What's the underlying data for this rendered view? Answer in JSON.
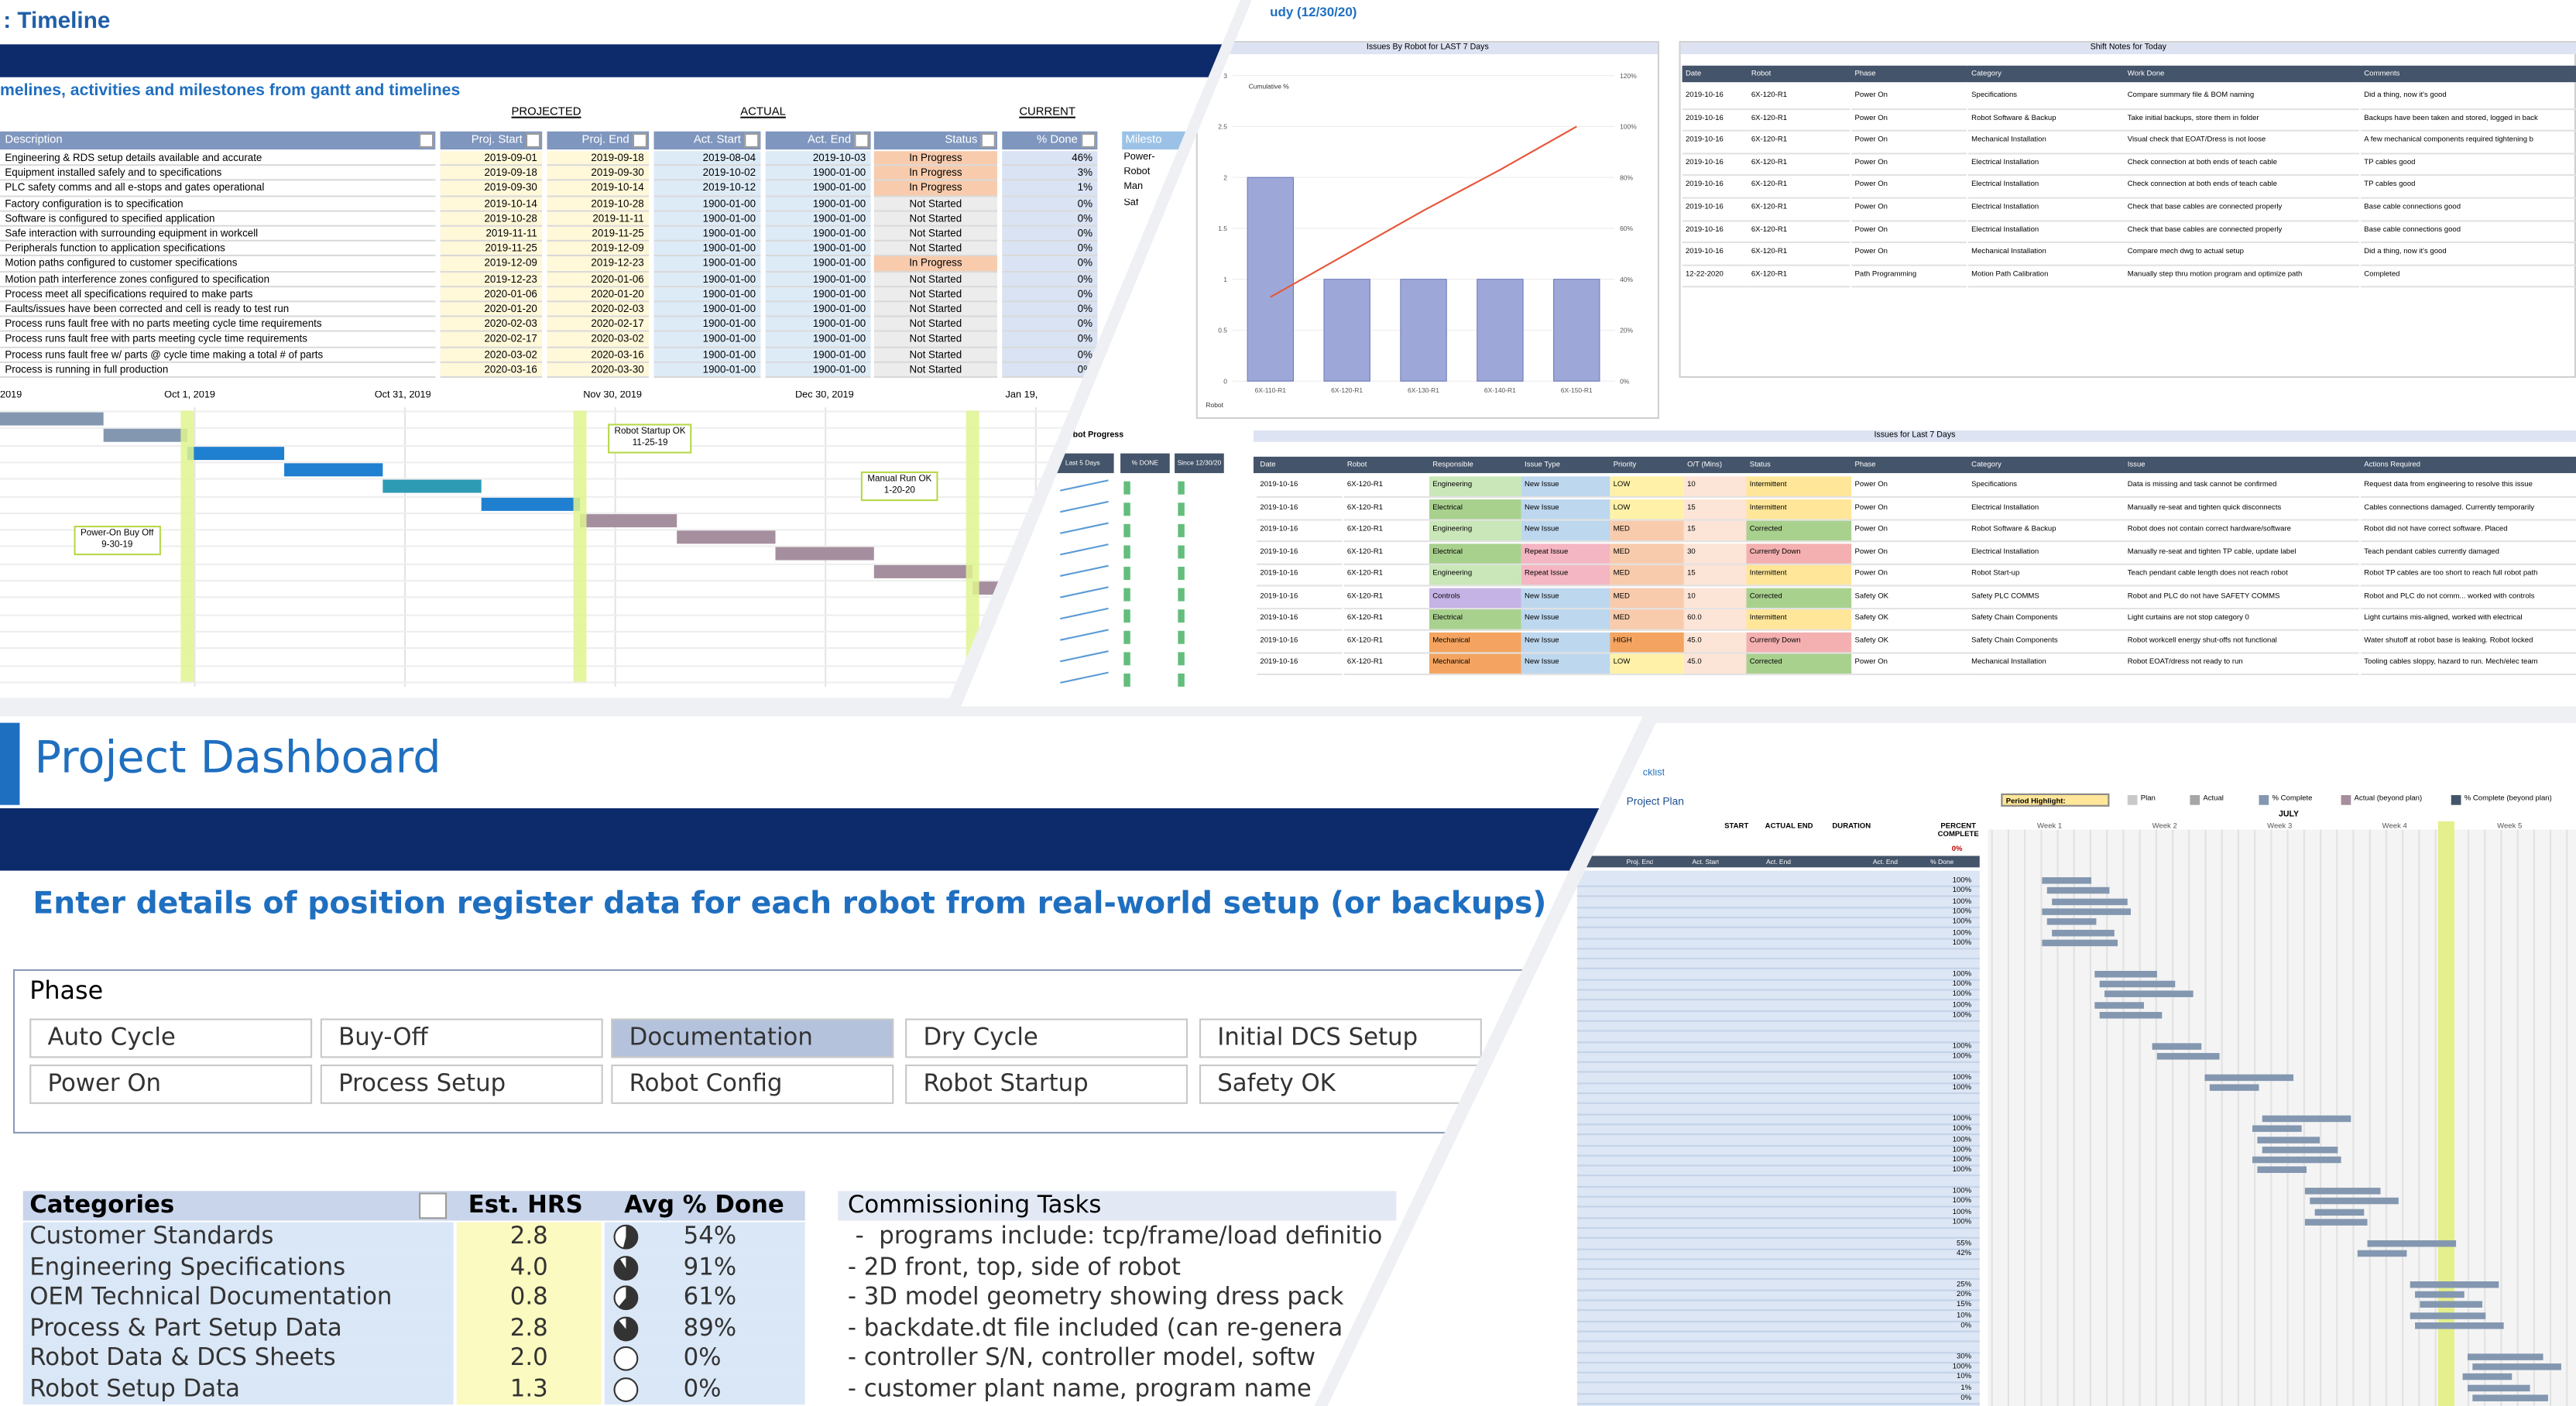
{
  "timeline": {
    "title": ": Timeline",
    "subtitle": "melines, activities and milestones from gantt and timelines",
    "groups": [
      "PROJECTED",
      "ACTUAL",
      "CURRENT"
    ],
    "columns": [
      "Description",
      "Proj. Start",
      "Proj. End",
      "Act. Start",
      "Act. End",
      "Status",
      "% Done"
    ],
    "rows": [
      [
        "Engineering & RDS setup details available and accurate",
        "2019-09-01",
        "2019-09-18",
        "2019-08-04",
        "2019-10-03",
        "In Progress",
        "46%"
      ],
      [
        "Equipment installed safely and to specifications",
        "2019-09-18",
        "2019-09-30",
        "2019-10-02",
        "1900-01-00",
        "In Progress",
        "3%"
      ],
      [
        "PLC safety comms and all e-stops and gates operational",
        "2019-09-30",
        "2019-10-14",
        "2019-10-12",
        "1900-01-00",
        "In Progress",
        "1%"
      ],
      [
        "Factory configuration is to specification",
        "2019-10-14",
        "2019-10-28",
        "1900-01-00",
        "1900-01-00",
        "Not Started",
        "0%"
      ],
      [
        "Software is configured to specified application",
        "2019-10-28",
        "2019-11-11",
        "1900-01-00",
        "1900-01-00",
        "Not Started",
        "0%"
      ],
      [
        "Safe interaction with surrounding equipment in workcell",
        "2019-11-11",
        "2019-11-25",
        "1900-01-00",
        "1900-01-00",
        "Not Started",
        "0%"
      ],
      [
        "Peripherals function to application specifications",
        "2019-11-25",
        "2019-12-09",
        "1900-01-00",
        "1900-01-00",
        "Not Started",
        "0%"
      ],
      [
        "Motion paths configured to customer specifications",
        "2019-12-09",
        "2019-12-23",
        "1900-01-00",
        "1900-01-00",
        "In Progress",
        "0%"
      ],
      [
        "Motion path interference zones configured to specification",
        "2019-12-23",
        "2020-01-06",
        "1900-01-00",
        "1900-01-00",
        "Not Started",
        "0%"
      ],
      [
        "Process meet all specifications required to make parts",
        "2020-01-06",
        "2020-01-20",
        "1900-01-00",
        "1900-01-00",
        "Not Started",
        "0%"
      ],
      [
        "Faults/issues have been corrected and cell is ready to test run",
        "2020-01-20",
        "2020-02-03",
        "1900-01-00",
        "1900-01-00",
        "Not Started",
        "0%"
      ],
      [
        "Process runs fault free with no parts meeting cycle time requirements",
        "2020-02-03",
        "2020-02-17",
        "1900-01-00",
        "1900-01-00",
        "Not Started",
        "0%"
      ],
      [
        "Process runs fault free with parts meeting cycle time requirements",
        "2020-02-17",
        "2020-03-02",
        "1900-01-00",
        "1900-01-00",
        "Not Started",
        "0%"
      ],
      [
        "Process runs fault free w/ parts @ cycle time making a total # of parts",
        "2020-03-02",
        "2020-03-16",
        "1900-01-00",
        "1900-01-00",
        "Not Started",
        "0%"
      ],
      [
        "Process is running in full production",
        "2020-03-16",
        "2020-03-30",
        "1900-01-00",
        "1900-01-00",
        "Not Started",
        "0%"
      ]
    ],
    "side_header": "Milesto",
    "side_labels": [
      "Power-",
      "Robot",
      "Man",
      "Saf"
    ],
    "gantt_dates": [
      "2019",
      "Oct 1, 2019",
      "Oct 31, 2019",
      "Nov 30, 2019",
      "Dec 30, 2019",
      "Jan 19,"
    ],
    "milestones": [
      {
        "label": "Power-On Buy Off",
        "date": "9-30-19"
      },
      {
        "label": "Robot Startup OK",
        "date": "11-25-19"
      },
      {
        "label": "Manual Run OK",
        "date": "1-20-20"
      }
    ]
  },
  "study": {
    "title": "udy (12/30/20)"
  },
  "issues_chart": {
    "type": "bar",
    "title": "Issues By Robot for LAST 7 Days",
    "legend": "Cumulative %",
    "categories": [
      "6X-110-R1",
      "6X-120-R1",
      "6X-130-R1",
      "6X-140-R1",
      "6X-150-R1"
    ],
    "values": [
      2,
      1,
      1,
      1,
      1
    ],
    "cumulative": [
      33,
      50,
      67,
      83,
      100
    ],
    "ylim": [
      0,
      3
    ],
    "yticks": [
      0,
      0.5,
      1,
      1.5,
      2,
      2.5,
      3
    ],
    "y2lim": [
      0,
      120
    ],
    "y2ticks": [
      {
        "value": 0,
        "label": "0%"
      },
      {
        "value": 20,
        "label": "20%"
      },
      {
        "value": 40,
        "label": "40%"
      },
      {
        "value": 60,
        "label": "60%"
      },
      {
        "value": 80,
        "label": "80%"
      },
      {
        "value": 100,
        "label": "100%"
      },
      {
        "value": 120,
        "label": "120%"
      }
    ],
    "footer": "Robot"
  },
  "shift_notes": {
    "title": "Shift Notes for Today",
    "columns": [
      "Date",
      "Robot",
      "Phase",
      "Category",
      "Work Done",
      "Comments"
    ],
    "rows": [
      [
        "2019-10-16",
        "6X-120-R1",
        "Power On",
        "Specifications",
        "Compare summary file & BOM naming",
        "Did a thing, now it's good"
      ],
      [
        "2019-10-16",
        "6X-120-R1",
        "Power On",
        "Robot Software & Backup",
        "Take initial backups, store them in folder",
        "Backups have been taken and stored, logged in back"
      ],
      [
        "2019-10-16",
        "6X-120-R1",
        "Power On",
        "Mechanical Installation",
        "Visual check that EOAT/Dress is not loose",
        "A few mechanical components required tightening b"
      ],
      [
        "2019-10-16",
        "6X-120-R1",
        "Power On",
        "Electrical Installation",
        "Check connection at both ends of teach cable",
        "TP cables good"
      ],
      [
        "2019-10-16",
        "6X-120-R1",
        "Power On",
        "Electrical Installation",
        "Check connection at both ends of teach cable",
        "TP cables good"
      ],
      [
        "2019-10-16",
        "6X-120-R1",
        "Power On",
        "Electrical Installation",
        "Check that base cables are connected properly",
        "Base cable connections good"
      ],
      [
        "2019-10-16",
        "6X-120-R1",
        "Power On",
        "Electrical Installation",
        "Check that base cables are connected properly",
        "Base cable connections good"
      ],
      [
        "2019-10-16",
        "6X-120-R1",
        "Power On",
        "Mechanical Installation",
        "Compare mech dwg to actual setup",
        "Did a thing, now it's good"
      ],
      [
        "12-22-2020",
        "6X-120-R1",
        "Path Programming",
        "Motion Path Calibration",
        "Manually step thru motion program and optimize path",
        "Completed"
      ]
    ]
  },
  "robot_progress": {
    "title": "obot Progress",
    "columns": [
      "Last 5 Days",
      "% DONE",
      "Since 12/30/20"
    ]
  },
  "issues": {
    "title": "Issues for Last 7 Days",
    "columns": [
      "Date",
      "Robot",
      "Responsible",
      "Issue Type",
      "Priority",
      "O/T (Mins)",
      "Status",
      "Phase",
      "Category",
      "Issue",
      "Actions Required"
    ],
    "rows": [
      [
        "2019-10-16",
        "6X-120-R1",
        "Engineering",
        "New Issue",
        "LOW",
        "10",
        "Intermittent",
        "Power On",
        "Specifications",
        "Data is missing and task cannot be confirmed",
        "Request data from engineering to resolve this issue"
      ],
      [
        "2019-10-16",
        "6X-120-R1",
        "Electrical",
        "New Issue",
        "LOW",
        "15",
        "Intermittent",
        "Power On",
        "Electrical Installation",
        "Manually re-seat and tighten quick disconnects",
        "Cables connections damaged. Currently temporarily"
      ],
      [
        "2019-10-16",
        "6X-120-R1",
        "Engineering",
        "New Issue",
        "MED",
        "15",
        "Corrected",
        "Power On",
        "Robot Software & Backup",
        "Robot does not contain correct hardware/software",
        "Robot did not have correct software. Placed"
      ],
      [
        "2019-10-16",
        "6X-120-R1",
        "Electrical",
        "Repeat Issue",
        "MED",
        "30",
        "Currently Down",
        "Power On",
        "Electrical Installation",
        "Manually re-seat and tighten TP cable, update label",
        "Teach pendant cables currently damaged"
      ],
      [
        "2019-10-16",
        "6X-120-R1",
        "Engineering",
        "Repeat Issue",
        "MED",
        "15",
        "Intermittent",
        "Power On",
        "Robot Start-up",
        "Teach pendant cable length does not reach robot",
        "Robot TP cables are too short to reach full robot path"
      ],
      [
        "2019-10-16",
        "6X-120-R1",
        "Controls",
        "New Issue",
        "MED",
        "10",
        "Corrected",
        "Safety OK",
        "Safety PLC COMMS",
        "Robot and PLC do not have SAFETY COMMS",
        "Robot and PLC do not comm... worked with controls"
      ],
      [
        "2019-10-16",
        "6X-120-R1",
        "Electrical",
        "New Issue",
        "MED",
        "60.0",
        "Intermittent",
        "Safety OK",
        "Safety Chain Components",
        "Light curtains are not stop category 0",
        "Light curtains mis-aligned, worked with electrical"
      ],
      [
        "2019-10-16",
        "6X-120-R1",
        "Mechanical",
        "New Issue",
        "HIGH",
        "45.0",
        "Currently Down",
        "Safety OK",
        "Safety Chain Components",
        "Robot workcell energy shut-offs not functional",
        "Water shutoff at robot base is leaking. Robot locked"
      ],
      [
        "2019-10-16",
        "6X-120-R1",
        "Mechanical",
        "New Issue",
        "LOW",
        "45.0",
        "Corrected",
        "Power On",
        "Mechanical Installation",
        "Robot EOAT/dress not ready to run",
        "Tooling cables sloppy, hazard to run. Mech/elec team"
      ]
    ]
  },
  "dashboard": {
    "title": "Project Dashboard",
    "subtitle": "Enter details of position register data for each robot from real-world setup (or backups)",
    "phase_label": "Phase",
    "phases": [
      "Auto Cycle",
      "Buy-Off",
      "Documentation",
      "Dry Cycle",
      "Initial DCS Setup",
      "Power On",
      "Process Setup",
      "Robot Config",
      "Robot Startup",
      "Safety OK"
    ],
    "selected_phase": "Documentation",
    "categories_header": [
      "Categories",
      "Est. HRS",
      "Avg % Done"
    ],
    "categories": [
      [
        "Customer Standards",
        "2.8",
        "54%"
      ],
      [
        "Engineering Specifications",
        "4.0",
        "91%"
      ],
      [
        "OEM Technical Documentation",
        "0.8",
        "61%"
      ],
      [
        "Process & Part Setup Data",
        "2.8",
        "89%"
      ],
      [
        "Robot Data & DCS Sheets",
        "2.0",
        "0%"
      ],
      [
        "Robot Setup Data",
        "1.3",
        "0%"
      ]
    ],
    "tasks_header": "Commissioning Tasks",
    "tasks": [
      " -  programs include: tcp/frame/load definitio",
      "- 2D front, top, side of robot",
      "- 3D model geometry showing dress pack",
      "- backdate.dt file included (can re-genera",
      "- controller S/N, controller model, softw",
      "- customer plant name, program name"
    ]
  },
  "plan": {
    "tab": "cklist",
    "title": "Project Plan",
    "headers": [
      "START",
      "ACTUAL END",
      "DURATION",
      "PERCENT COMPLETE"
    ],
    "total": "0%",
    "columns": [
      "Proj. End",
      "Act. Start",
      "Act. End",
      "Act. End",
      "% Done"
    ],
    "period": "Period Highlight:",
    "legend": [
      "Plan",
      "Actual",
      "% Complete",
      "Actual (beyond plan)",
      "% Complete (beyond plan)"
    ],
    "month": "JULY",
    "weeks": [
      "Week 1",
      "Week 2",
      "Week 3",
      "Week 4",
      "Week 5"
    ],
    "pct": [
      "100%",
      "100%",
      "100%",
      "100%",
      "100%",
      "100%",
      "100%",
      null,
      null,
      "100%",
      "100%",
      "100%",
      "100%",
      "100%",
      null,
      null,
      "100%",
      "100%",
      null,
      "100%",
      "100%",
      null,
      null,
      "100%",
      "100%",
      "100%",
      "100%",
      "100%",
      "100%",
      null,
      "100%",
      "100%",
      "100%",
      "100%",
      null,
      "55%",
      "42%",
      null,
      null,
      "25%",
      "20%",
      "15%",
      "10%",
      "0%",
      null,
      null,
      "30%",
      "100%",
      "10%",
      "1%",
      "0%"
    ]
  }
}
